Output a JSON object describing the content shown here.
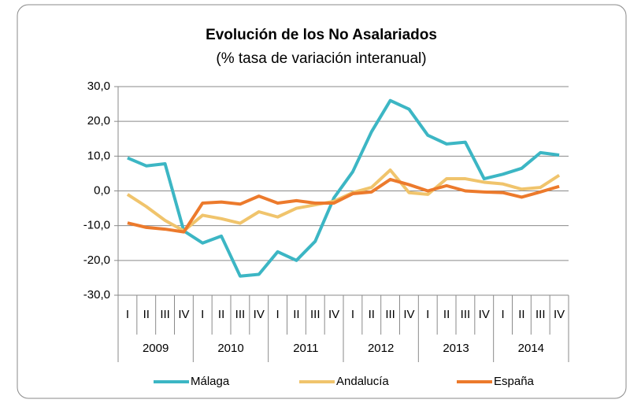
{
  "chart_data": {
    "type": "line",
    "title": "Evolución de los  No Asalariados",
    "subtitle": "(% tasa de variación interanual)",
    "categories": [
      "I",
      "II",
      "III",
      "IV",
      "I",
      "II",
      "III",
      "IV",
      "I",
      "II",
      "III",
      "IV",
      "I",
      "II",
      "III",
      "IV",
      "I",
      "II",
      "III",
      "IV",
      "I",
      "II",
      "III",
      "IV"
    ],
    "year_groups": [
      "2009",
      "2010",
      "2011",
      "2012",
      "2013",
      "2014"
    ],
    "series": [
      {
        "name": "Málaga",
        "color": "#3cb6c4",
        "values": [
          9.5,
          7.2,
          7.8,
          -11.5,
          -15,
          -13,
          -24.5,
          -24,
          -17.5,
          -20,
          -14.5,
          -2,
          5.5,
          17,
          26,
          23.5,
          16,
          13.5,
          14,
          3.5,
          4.8,
          6.5,
          11,
          10.3
        ]
      },
      {
        "name": "Andalucía",
        "color": "#f0c46c",
        "values": [
          -1,
          -4.5,
          -8.5,
          -11.5,
          -7,
          -8,
          -9.3,
          -6,
          -7.5,
          -5,
          -4,
          -3,
          -0.5,
          1,
          6,
          -0.5,
          -1,
          3.5,
          3.5,
          2.5,
          2,
          0.5,
          1,
          4.5
        ]
      },
      {
        "name": "España",
        "color": "#ec7a2c",
        "values": [
          -9.2,
          -10.5,
          -11,
          -11.8,
          -3.5,
          -3.2,
          -3.8,
          -1.5,
          -3.5,
          -2.8,
          -3.5,
          -3.5,
          -0.8,
          -0.3,
          3.3,
          1.8,
          0,
          1.5,
          0,
          -0.3,
          -0.5,
          -1.8,
          -0.3,
          1.3
        ]
      }
    ],
    "ylim": [
      -30,
      30
    ],
    "yticks": [
      {
        "value": -30,
        "label": "-30,0"
      },
      {
        "value": -20,
        "label": "-20,0"
      },
      {
        "value": -10,
        "label": "-10,0"
      },
      {
        "value": 0,
        "label": "0,0"
      },
      {
        "value": 10,
        "label": "10,0"
      },
      {
        "value": 20,
        "label": "20,0"
      },
      {
        "value": 30,
        "label": "30,0"
      }
    ],
    "grid": true,
    "legend": "bottom"
  }
}
